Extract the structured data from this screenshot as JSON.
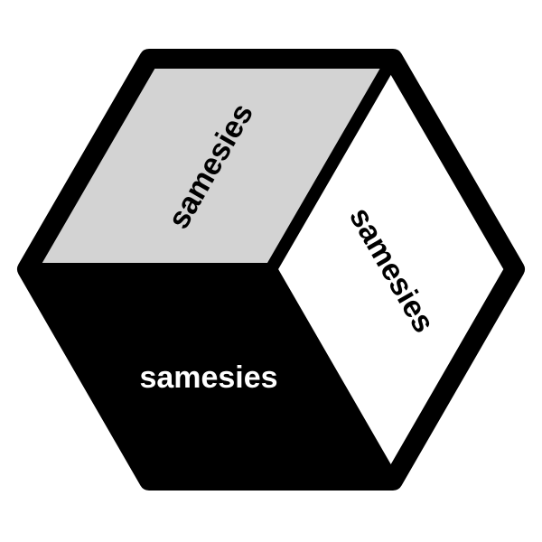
{
  "faces": {
    "top": {
      "label": "samesies",
      "fill": "#d3d3d3",
      "text_color": "#000000"
    },
    "right": {
      "label": "samesies",
      "fill": "#ffffff",
      "text_color": "#000000"
    },
    "front": {
      "label": "samesies",
      "fill": "#000000",
      "text_color": "#ffffff"
    }
  },
  "outline_color": "#000000",
  "background": "#ffffff"
}
